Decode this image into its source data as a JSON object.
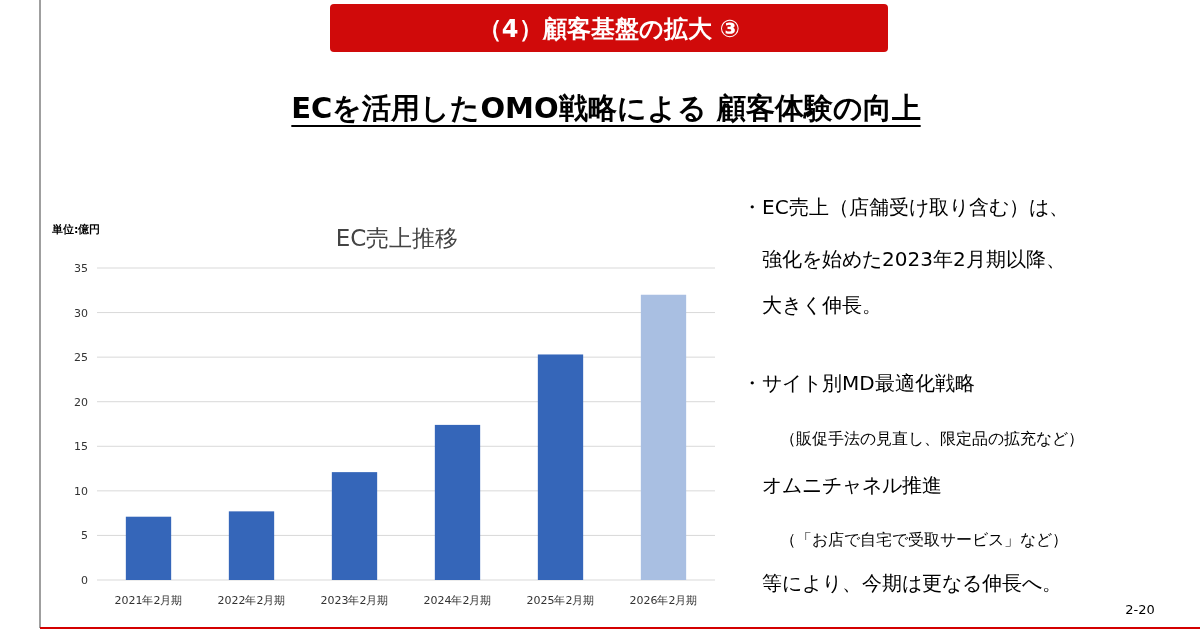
{
  "chart_data": {
    "type": "bar",
    "title": "EC売上推移",
    "ylabel": "単位:億円",
    "categories": [
      "2021年2月期",
      "2022年2月期",
      "2023年2月期",
      "2024年2月期",
      "2025年2月期",
      "2026年2月期"
    ],
    "values": [
      7.1,
      7.7,
      12.1,
      17.4,
      25.3,
      32.0
    ],
    "colors": [
      "#3566b9",
      "#3566b9",
      "#3566b9",
      "#3566b9",
      "#3566b9",
      "#a9bfe2"
    ],
    "ylim": [
      0,
      35
    ],
    "yticks": [
      0,
      5,
      10,
      15,
      20,
      25,
      30,
      35
    ],
    "grid": "y",
    "annotations": [
      "（4）顧客基盤の拡大 ③",
      "ECを活用したOMO戦略による 顧客体験の向上",
      "・EC売上（店舗受け取り含む）は、",
      "強化を始めた2023年2月期以降、",
      "大きく伸長。",
      "・サイト別MD最適化戦略",
      "（販促手法の見直し、限定品の拡充など）",
      "オムニチャネル推進",
      "（「お店で自宅で受取サービス」など）",
      "等により、今期は更なる伸長へ。",
      "2-20"
    ]
  }
}
